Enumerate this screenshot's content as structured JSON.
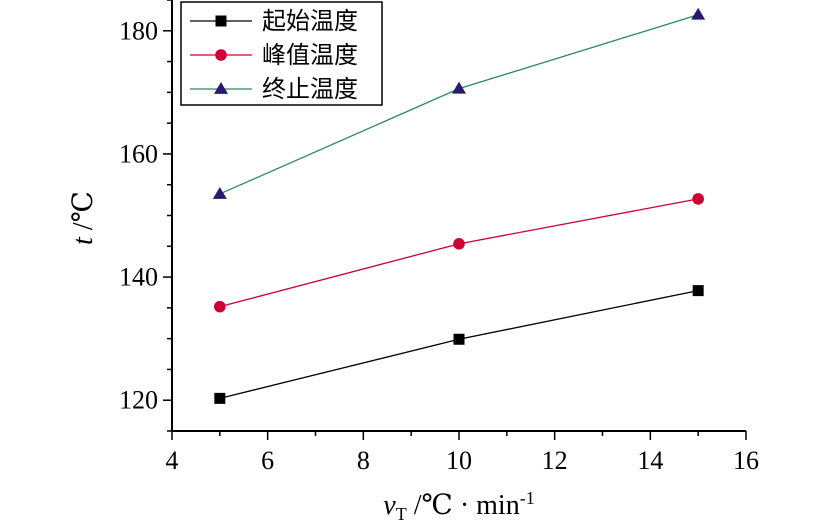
{
  "chart_data": {
    "type": "line",
    "x": [
      5,
      10,
      15
    ],
    "series": [
      {
        "name": "起始温度",
        "values": [
          120.3,
          129.9,
          137.8
        ],
        "color": "#000000",
        "marker": "square"
      },
      {
        "name": "峰值温度",
        "values": [
          135.2,
          145.4,
          152.7
        ],
        "color": "#cc0033",
        "marker": "circle"
      },
      {
        "name": "终止温度",
        "values": [
          153.5,
          170.6,
          182.6
        ],
        "color": "#2e8b57",
        "marker_color": "#2a1a6e",
        "marker": "triangle"
      }
    ],
    "xlim": [
      4,
      16
    ],
    "ylim": [
      115,
      185
    ],
    "xticks": [
      4,
      6,
      8,
      10,
      12,
      14,
      16
    ],
    "yticks": [
      120,
      140,
      160,
      180
    ],
    "ylabel": {
      "var": "t",
      "unit": " /℃"
    },
    "xlabel": {
      "var": "v",
      "sub": "T",
      "unit": " /℃ · min",
      "sup": "-1"
    },
    "legend_position": "top-left",
    "grid": false
  }
}
